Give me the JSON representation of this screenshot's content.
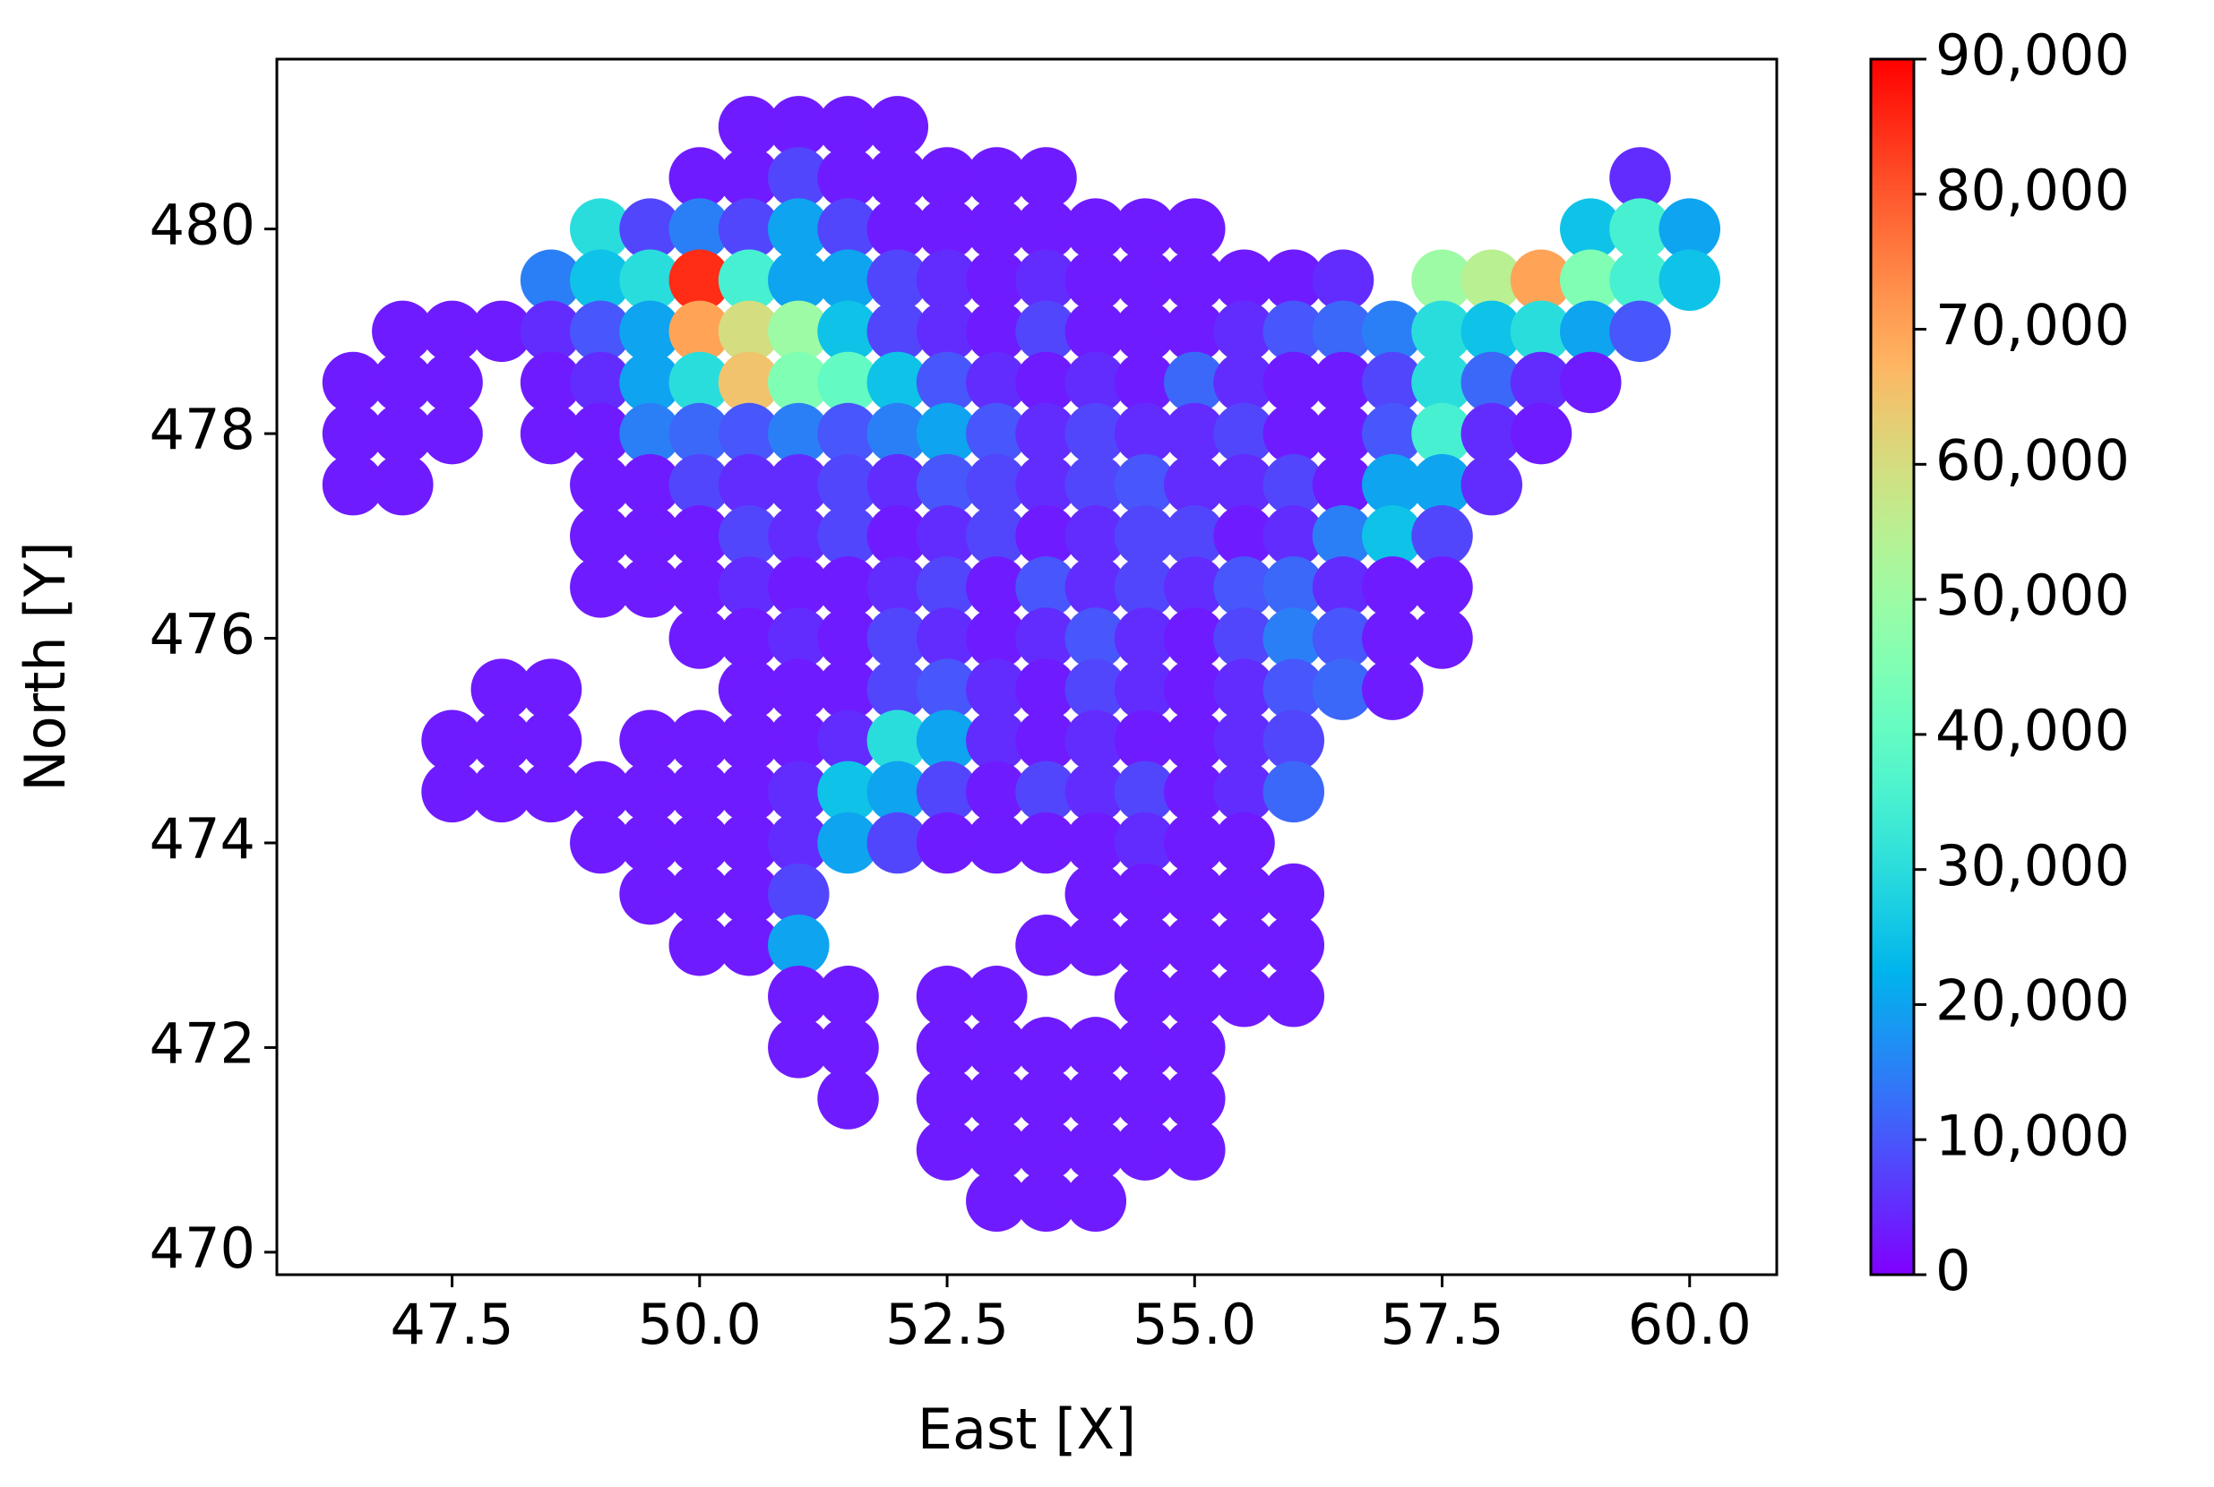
{
  "chart_data": {
    "type": "heatmap",
    "x_label": "East [X]",
    "y_label": "North [Y]",
    "xlim": [
      45.73,
      60.88
    ],
    "ylim": [
      469.78,
      481.66
    ],
    "xticks": [
      47.5,
      {
        "value": 50,
        "label": "50.0"
      },
      52.5,
      {
        "value": 55,
        "label": "55.0"
      },
      57.5,
      {
        "value": 60,
        "label": "60.0"
      }
    ],
    "yticks": [
      470,
      472,
      474,
      476,
      478,
      480
    ],
    "colormap": "rainbow",
    "clim": [
      0,
      90000
    ],
    "colorbar_ticks": [
      0,
      {
        "value": 10000,
        "label": "10,000"
      },
      {
        "value": 20000,
        "label": "20,000"
      },
      {
        "value": 30000,
        "label": "30,000"
      },
      {
        "value": 40000,
        "label": "40,000"
      },
      {
        "value": 50000,
        "label": "50,000"
      },
      {
        "value": 60000,
        "label": "60,000"
      },
      {
        "value": 70000,
        "label": "70,000"
      },
      {
        "value": 80000,
        "label": "80,000"
      },
      {
        "value": 90000,
        "label": "90,000"
      }
    ],
    "x": [
      46.5,
      47,
      47.5,
      48,
      48.5,
      49,
      49.5,
      50,
      50.5,
      51,
      51.5,
      52,
      52.5,
      53,
      53.5,
      54,
      54.5,
      55,
      55.5,
      56,
      56.5,
      57,
      57.5,
      58,
      58.5,
      59,
      59.5,
      60
    ],
    "y": [
      481,
      480.5,
      480,
      479.5,
      479,
      478.5,
      478,
      477.5,
      477,
      476.5,
      476,
      475.5,
      475,
      474.5,
      474,
      473.5,
      473,
      472.5,
      472,
      471.5,
      471,
      470.5
    ],
    "values": [
      [
        null,
        null,
        null,
        null,
        null,
        null,
        null,
        null,
        3000,
        3000,
        3000,
        3000,
        null,
        null,
        null,
        null,
        null,
        null,
        null,
        null,
        null,
        null,
        null,
        null,
        null,
        null,
        null,
        null
      ],
      [
        null,
        null,
        null,
        null,
        null,
        null,
        null,
        3000,
        3000,
        8000,
        3000,
        3000,
        3000,
        3000,
        3000,
        null,
        null,
        null,
        null,
        null,
        null,
        null,
        null,
        null,
        null,
        null,
        5000,
        null
      ],
      [
        null,
        null,
        null,
        null,
        null,
        30000,
        8000,
        15000,
        8000,
        20000,
        8000,
        3000,
        3000,
        3000,
        3000,
        3000,
        3000,
        3000,
        null,
        null,
        null,
        null,
        null,
        null,
        null,
        25000,
        35000,
        20000
      ],
      [
        null,
        null,
        null,
        null,
        15000,
        25000,
        30000,
        85000,
        35000,
        20000,
        20000,
        8000,
        5000,
        3000,
        5000,
        3000,
        3000,
        3000,
        3000,
        3000,
        5000,
        null,
        50000,
        55000,
        70000,
        45000,
        35000,
        25000
      ],
      [
        null,
        3000,
        3000,
        3000,
        5000,
        10000,
        20000,
        70000,
        60000,
        50000,
        25000,
        8000,
        5000,
        3000,
        8000,
        3000,
        3000,
        3000,
        5000,
        10000,
        12000,
        15000,
        30000,
        25000,
        30000,
        20000,
        10000,
        null
      ],
      [
        3000,
        3000,
        3000,
        null,
        3000,
        5000,
        20000,
        30000,
        65000,
        45000,
        40000,
        25000,
        10000,
        5000,
        3000,
        5000,
        3000,
        12000,
        5000,
        3000,
        3000,
        8000,
        30000,
        12000,
        5000,
        3000,
        null,
        null
      ],
      [
        3000,
        3000,
        3000,
        null,
        3000,
        3000,
        15000,
        12000,
        10000,
        15000,
        10000,
        15000,
        20000,
        10000,
        5000,
        8000,
        5000,
        5000,
        8000,
        3000,
        3000,
        10000,
        35000,
        5000,
        3000,
        null,
        null,
        null
      ],
      [
        3000,
        3000,
        null,
        null,
        null,
        3000,
        3000,
        8000,
        5000,
        5000,
        8000,
        5000,
        10000,
        8000,
        5000,
        8000,
        10000,
        5000,
        5000,
        8000,
        3000,
        20000,
        20000,
        5000,
        null,
        null,
        null,
        null
      ],
      [
        null,
        null,
        null,
        null,
        null,
        3000,
        3000,
        3000,
        8000,
        5000,
        8000,
        3000,
        5000,
        8000,
        3000,
        5000,
        8000,
        8000,
        3000,
        5000,
        15000,
        25000,
        8000,
        null,
        null,
        null,
        null,
        null
      ],
      [
        null,
        null,
        null,
        null,
        null,
        3000,
        3000,
        3000,
        5000,
        3000,
        3000,
        5000,
        8000,
        3000,
        10000,
        5000,
        8000,
        5000,
        10000,
        12000,
        5000,
        3000,
        3000,
        null,
        null,
        null,
        null,
        null
      ],
      [
        null,
        null,
        null,
        null,
        null,
        null,
        null,
        3000,
        3000,
        5000,
        3000,
        8000,
        5000,
        3000,
        5000,
        10000,
        5000,
        3000,
        8000,
        15000,
        10000,
        3000,
        3000,
        null,
        null,
        null,
        null,
        null
      ],
      [
        null,
        null,
        null,
        3000,
        3000,
        null,
        null,
        null,
        3000,
        3000,
        3000,
        8000,
        10000,
        5000,
        3000,
        8000,
        5000,
        3000,
        5000,
        10000,
        12000,
        3000,
        null,
        null,
        null,
        null,
        null,
        null
      ],
      [
        null,
        null,
        3000,
        3000,
        3000,
        null,
        3000,
        3000,
        3000,
        3000,
        5000,
        30000,
        20000,
        5000,
        3000,
        5000,
        3000,
        3000,
        5000,
        8000,
        null,
        null,
        null,
        null,
        null,
        null,
        null,
        null
      ],
      [
        null,
        null,
        3000,
        3000,
        3000,
        3000,
        3000,
        3000,
        3000,
        5000,
        25000,
        20000,
        8000,
        3000,
        8000,
        5000,
        8000,
        3000,
        5000,
        12000,
        null,
        null,
        null,
        null,
        null,
        null,
        null,
        null
      ],
      [
        null,
        null,
        null,
        null,
        null,
        3000,
        3000,
        3000,
        3000,
        5000,
        20000,
        8000,
        3000,
        3000,
        3000,
        3000,
        5000,
        3000,
        3000,
        null,
        null,
        null,
        null,
        null,
        null,
        null,
        null,
        null
      ],
      [
        null,
        null,
        null,
        null,
        null,
        null,
        3000,
        3000,
        3000,
        8000,
        null,
        null,
        null,
        null,
        null,
        3000,
        3000,
        3000,
        3000,
        3000,
        null,
        null,
        null,
        null,
        null,
        null,
        null,
        null
      ],
      [
        null,
        null,
        null,
        null,
        null,
        null,
        null,
        3000,
        3000,
        20000,
        null,
        null,
        null,
        null,
        3000,
        3000,
        3000,
        3000,
        3000,
        3000,
        null,
        null,
        null,
        null,
        null,
        null,
        null,
        null
      ],
      [
        null,
        null,
        null,
        null,
        null,
        null,
        null,
        null,
        null,
        3000,
        3000,
        null,
        3000,
        3000,
        null,
        null,
        3000,
        3000,
        3000,
        3000,
        null,
        null,
        null,
        null,
        null,
        null,
        null,
        null
      ],
      [
        null,
        null,
        null,
        null,
        null,
        null,
        null,
        null,
        null,
        3000,
        3000,
        null,
        3000,
        3000,
        3000,
        3000,
        3000,
        3000,
        null,
        null,
        null,
        null,
        null,
        null,
        null,
        null,
        null,
        null
      ],
      [
        null,
        null,
        null,
        null,
        null,
        null,
        null,
        null,
        null,
        null,
        3000,
        null,
        3000,
        3000,
        3000,
        3000,
        3000,
        3000,
        null,
        null,
        null,
        null,
        null,
        null,
        null,
        null,
        null,
        null
      ],
      [
        null,
        null,
        null,
        null,
        null,
        null,
        null,
        null,
        null,
        null,
        null,
        null,
        3000,
        3000,
        3000,
        3000,
        3000,
        3000,
        null,
        null,
        null,
        null,
        null,
        null,
        null,
        null,
        null,
        null
      ],
      [
        null,
        null,
        null,
        null,
        null,
        null,
        null,
        null,
        null,
        null,
        null,
        null,
        null,
        3000,
        3000,
        3000,
        null,
        null,
        null,
        null,
        null,
        null,
        null,
        null,
        null,
        null,
        null,
        null
      ]
    ]
  }
}
